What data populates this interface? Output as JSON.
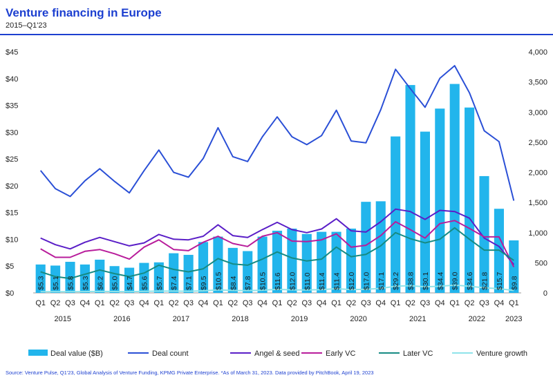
{
  "title": "Venture financing in Europe",
  "subtitle": "2015–Q1'23",
  "source": "Source: Venture Pulse, Q1'23, Global Analysis of Venture Funding, KPMG Private Enterprise. *As of March 31, 2023. Data provided by PitchBook, April 19, 2023",
  "chart_data": {
    "type": "bar",
    "title": "Venture financing in Europe",
    "subtitle": "2015–Q1'23",
    "quarters": [
      "Q1",
      "Q2",
      "Q3",
      "Q4",
      "Q1",
      "Q2",
      "Q3",
      "Q4",
      "Q1",
      "Q2",
      "Q3",
      "Q4",
      "Q1",
      "Q2",
      "Q3",
      "Q4",
      "Q1",
      "Q2",
      "Q3",
      "Q4",
      "Q1",
      "Q2",
      "Q3",
      "Q4",
      "Q1",
      "Q2",
      "Q3",
      "Q4",
      "Q1",
      "Q2",
      "Q3",
      "Q4",
      "Q1"
    ],
    "years": [
      {
        "label": "2015",
        "start": 0,
        "end": 3
      },
      {
        "label": "2016",
        "start": 4,
        "end": 7
      },
      {
        "label": "2017",
        "start": 8,
        "end": 11
      },
      {
        "label": "2018",
        "start": 12,
        "end": 15
      },
      {
        "label": "2019",
        "start": 16,
        "end": 19
      },
      {
        "label": "2020",
        "start": 20,
        "end": 23
      },
      {
        "label": "2021",
        "start": 24,
        "end": 27
      },
      {
        "label": "2022",
        "start": 28,
        "end": 31
      },
      {
        "label": "2023",
        "start": 32,
        "end": 32
      }
    ],
    "y_left": {
      "min": 0,
      "max": 45,
      "ticks": [
        "$0",
        "$5",
        "$10",
        "$15",
        "$20",
        "$25",
        "$30",
        "$35",
        "$40",
        "$45"
      ]
    },
    "y_right": {
      "min": 0,
      "max": 4000,
      "ticks": [
        "0",
        "500",
        "1,000",
        "1,500",
        "2,000",
        "2,500",
        "3,000",
        "3,500",
        "4,000"
      ]
    },
    "bars": {
      "name": "Deal value ($B)",
      "color": "#22b5ec",
      "values": [
        5.3,
        5.1,
        5.8,
        5.3,
        6.2,
        5.0,
        4.7,
        5.6,
        5.7,
        7.4,
        7.1,
        9.5,
        10.5,
        8.4,
        7.8,
        10.5,
        11.6,
        12.0,
        11.0,
        11.4,
        11.4,
        12.0,
        17.0,
        17.1,
        29.2,
        38.8,
        30.1,
        34.4,
        39.0,
        34.6,
        21.8,
        15.7,
        9.8
      ],
      "labels": [
        "$5.3",
        "$5.1",
        "$5.8",
        "$5.3",
        "$6.2",
        "$5.0",
        "$4.7",
        "$5.6",
        "$5.7",
        "$7.4",
        "$7.1",
        "$9.5",
        "$10.5",
        "$8.4",
        "$7.8",
        "$10.5",
        "$11.6",
        "$12.0",
        "$11.0",
        "$11.4",
        "$11.4",
        "$12.0",
        "$17.0",
        "$17.1",
        "$29.2",
        "$38.8",
        "$30.1",
        "$34.4",
        "$39.0",
        "$34.6",
        "$21.8",
        "$15.7",
        "$9.8"
      ]
    },
    "lines": [
      {
        "name": "Deal count",
        "color": "#2a4fd6",
        "values": [
          2030,
          1730,
          1600,
          1860,
          2060,
          1850,
          1660,
          2030,
          2370,
          2000,
          1920,
          2230,
          2740,
          2260,
          2180,
          2590,
          2920,
          2590,
          2460,
          2610,
          3030,
          2520,
          2490,
          3040,
          3710,
          3390,
          3080,
          3560,
          3770,
          3320,
          2690,
          2510,
          1530
        ]
      },
      {
        "name": "Angel & seed",
        "color": "#5a1ec7",
        "values": [
          910,
          800,
          730,
          840,
          920,
          850,
          780,
          830,
          970,
          890,
          880,
          940,
          1130,
          950,
          920,
          1050,
          1170,
          1050,
          1000,
          1060,
          1230,
          1030,
          1010,
          1180,
          1390,
          1350,
          1220,
          1370,
          1350,
          1240,
          910,
          770,
          470
        ]
      },
      {
        "name": "Early VC",
        "color": "#b81c9b",
        "values": [
          730,
          590,
          590,
          690,
          720,
          650,
          560,
          760,
          880,
          720,
          700,
          840,
          940,
          820,
          770,
          940,
          1000,
          860,
          850,
          880,
          980,
          760,
          790,
          950,
          1180,
          1050,
          910,
          1150,
          1200,
          1070,
          930,
          930,
          430
        ]
      },
      {
        "name": "Later VC",
        "color": "#168b83",
        "values": [
          350,
          270,
          240,
          310,
          380,
          320,
          270,
          330,
          460,
          390,
          350,
          400,
          570,
          480,
          460,
          560,
          680,
          580,
          530,
          560,
          760,
          600,
          640,
          780,
          1000,
          900,
          830,
          890,
          1080,
          890,
          710,
          710,
          540
        ]
      },
      {
        "name": "Venture growth",
        "color": "#8ee3ea",
        "values": [
          20,
          20,
          20,
          22,
          24,
          23,
          20,
          25,
          30,
          30,
          28,
          34,
          50,
          40,
          38,
          45,
          58,
          50,
          48,
          54,
          70,
          55,
          60,
          75,
          110,
          120,
          100,
          110,
          130,
          110,
          85,
          70,
          40
        ]
      }
    ]
  }
}
